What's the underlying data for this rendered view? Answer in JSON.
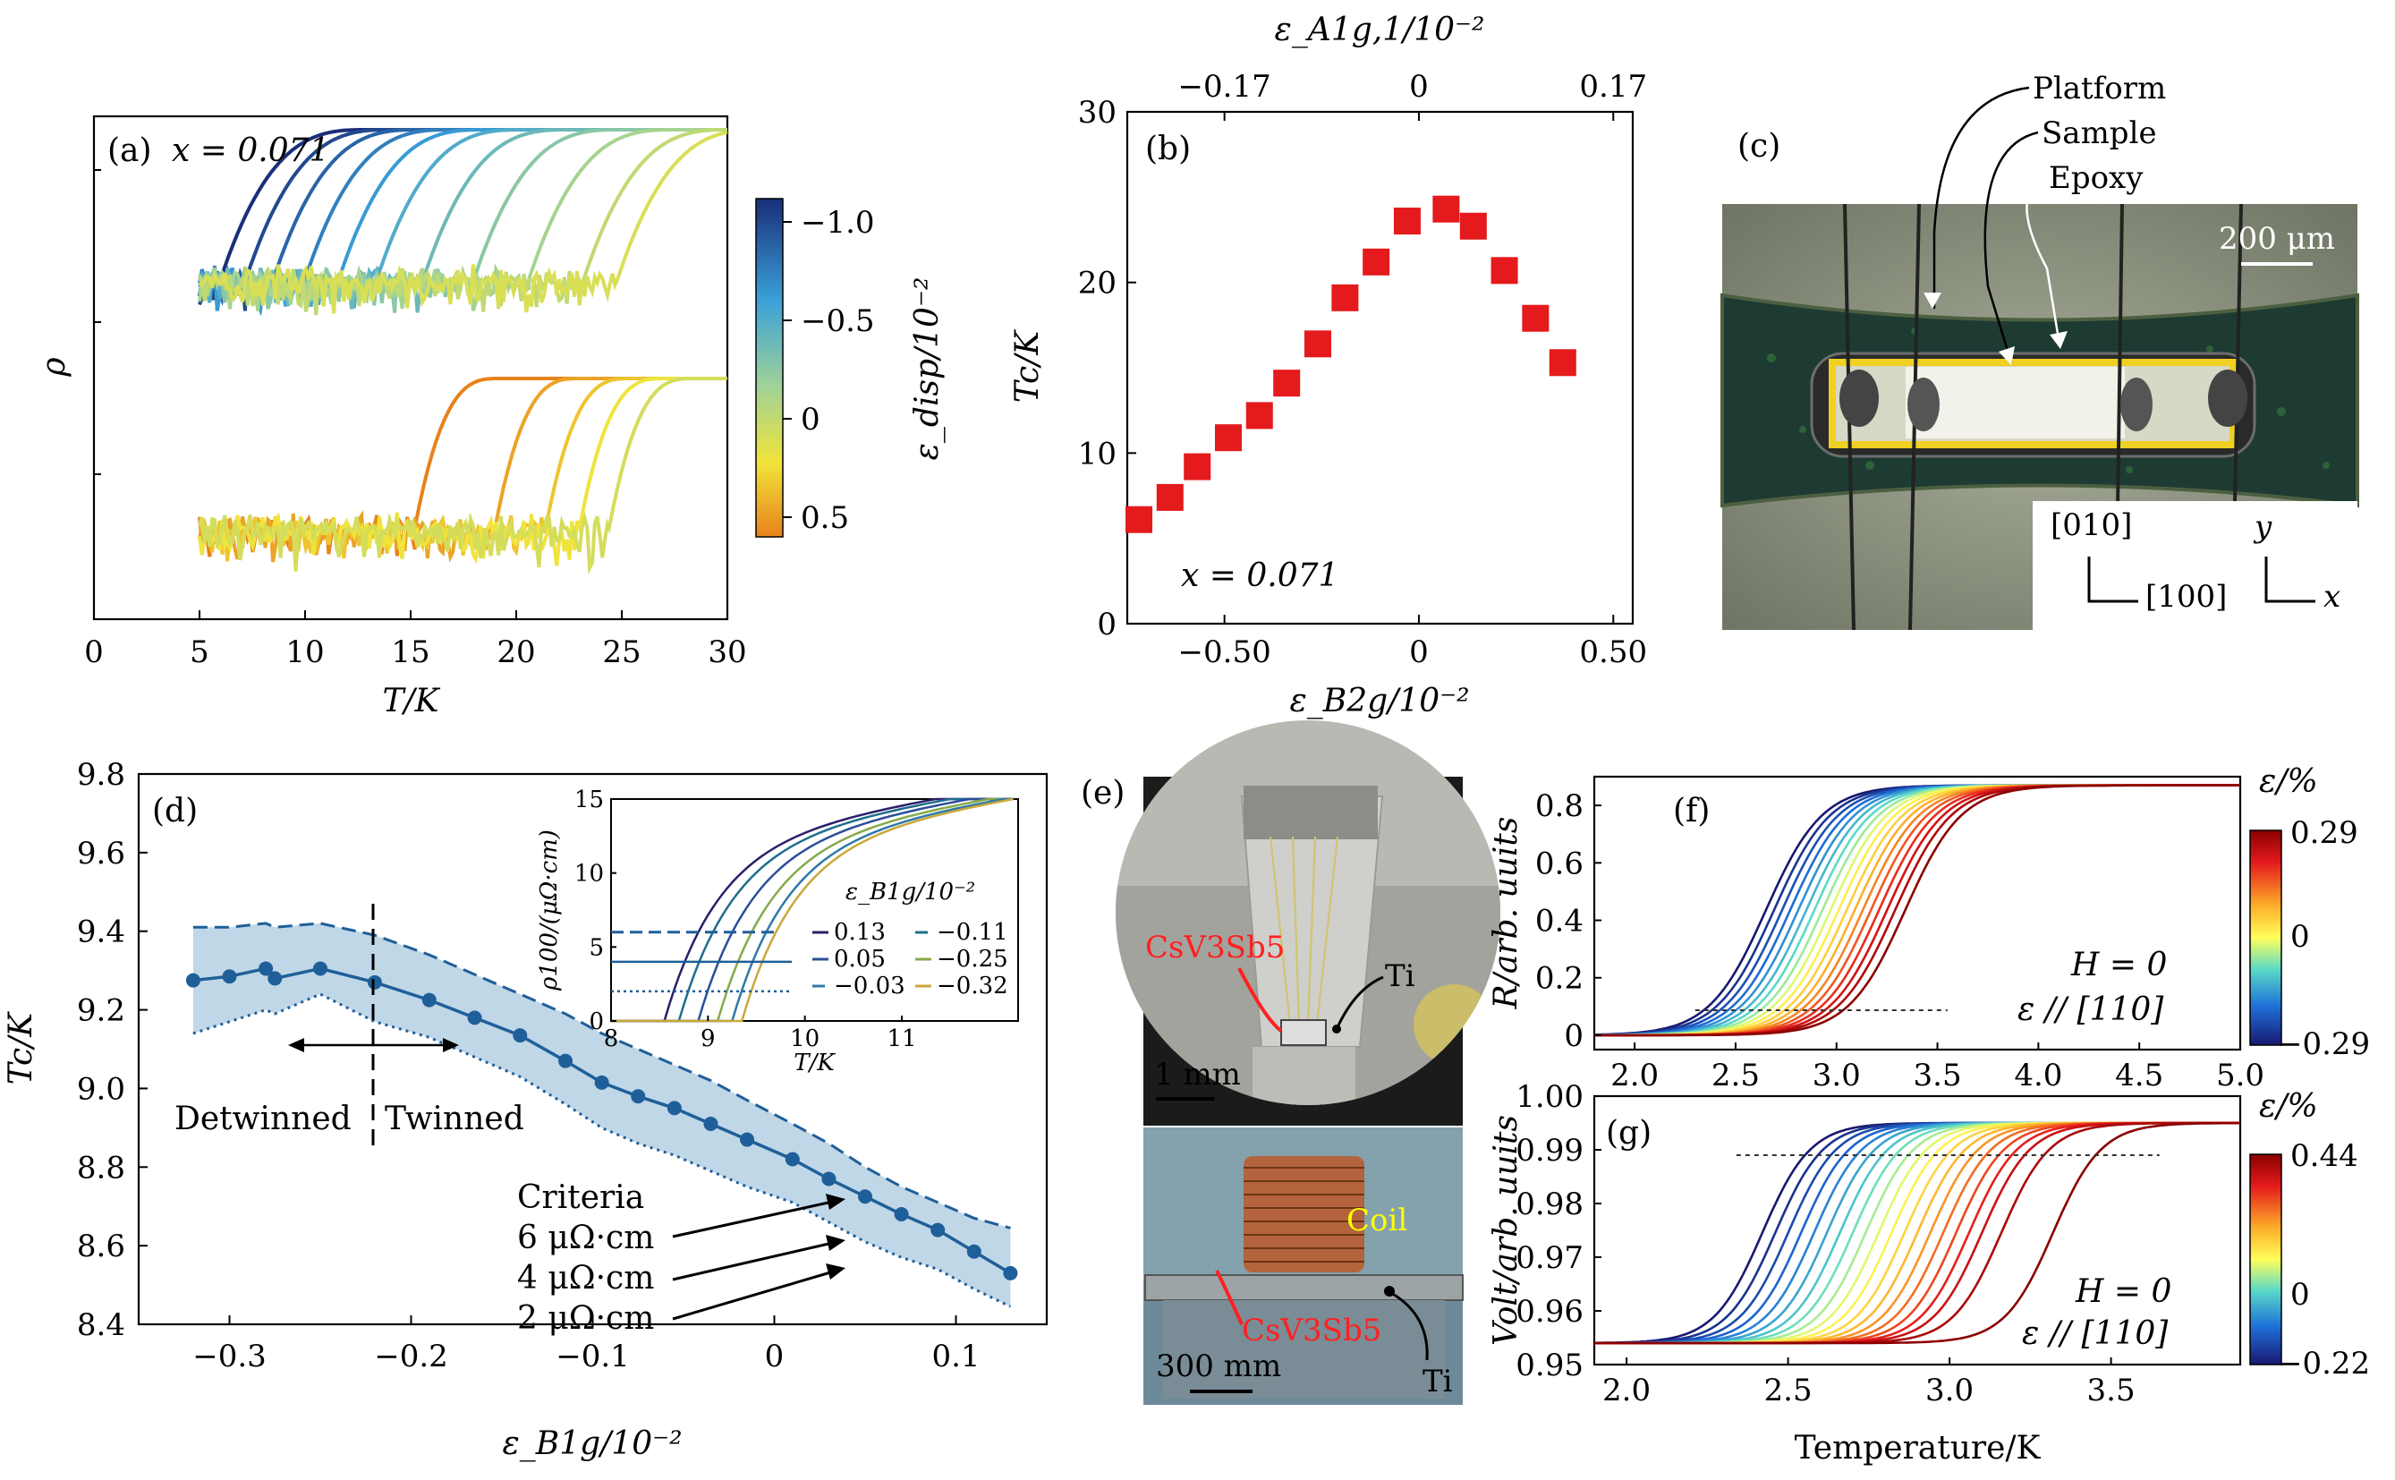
{
  "colors": {
    "cool_end": "#1a2e7a",
    "warm_end": "#e8821c",
    "marker_b": "#e41a1c",
    "line_d": "#1f5f99",
    "band_d": "#b9d3e6",
    "coil_red": "#e41a1c",
    "ti_label": "#ffff00"
  },
  "panels": {
    "a": {
      "label": "(a)",
      "annotation": "x = 0.071",
      "xlabel": "T/K",
      "ylabel": "ρ",
      "xticks": [
        "0",
        "5",
        "10",
        "15",
        "20",
        "25",
        "30"
      ],
      "colorbar_label": "ε_disp/10⁻²",
      "colorbar_ticks": [
        "−1.0",
        "−0.5",
        "0",
        "0.5"
      ]
    },
    "b": {
      "label": "(b)",
      "annotation": "x = 0.071",
      "xlabel": "ε_B2g/10⁻²",
      "top_label": "ε_A1g,1/10⁻²",
      "ylabel": "Tc/K",
      "xticks": [
        "−0.50",
        "0",
        "0.50"
      ],
      "top_ticks": [
        "−0.17",
        "0",
        "0.17"
      ],
      "yticks": [
        "0",
        "10",
        "20",
        "30"
      ]
    },
    "c": {
      "label": "(c)",
      "annotations": [
        "Platform",
        "Sample",
        "Epoxy"
      ],
      "scale": "200 μm",
      "axes_left": [
        "[010]",
        "[100]"
      ],
      "axes_right": [
        "y",
        "x"
      ]
    },
    "d": {
      "label": "(d)",
      "xlabel": "ε_B1g/10⁻²",
      "ylabel": "Tc/K",
      "xticks": [
        "−0.3",
        "−0.2",
        "−0.1",
        "0",
        "0.1"
      ],
      "yticks": [
        "8.4",
        "8.6",
        "8.8",
        "9.0",
        "9.2",
        "9.4",
        "9.6",
        "9.8"
      ],
      "detwinned": "Detwinned",
      "twinned": "Twinned",
      "criteria_title": "Criteria",
      "criteria": [
        "6 μΩ·cm",
        "4 μΩ·cm",
        "2 μΩ·cm"
      ],
      "inset": {
        "xlabel": "T/K",
        "ylabel": "ρ100/(μΩ·cm)",
        "xticks": [
          "8",
          "9",
          "10",
          "11"
        ],
        "yticks": [
          "0",
          "5",
          "10",
          "15"
        ],
        "legend_title": "ε_B1g/10⁻²",
        "legend": [
          "0.13",
          "−0.11",
          "0.05",
          "−0.25",
          "−0.03",
          "−0.32"
        ]
      }
    },
    "e": {
      "label": "(e)",
      "sample_label": "CsV3Sb5",
      "ti_label": "Ti",
      "scale_top": "1 mm",
      "coil_label": "Coil",
      "scale_bottom": "300 mm"
    },
    "f": {
      "label": "(f)",
      "ylabel": "R/arb. uuits",
      "xticks": [
        "2.0",
        "2.5",
        "3.0",
        "3.5",
        "4.0",
        "4.5",
        "5.0"
      ],
      "yticks": [
        "0",
        "0.2",
        "0.4",
        "0.6",
        "0.8"
      ],
      "field": "H = 0",
      "strain": "ε // [110]",
      "colorbar_label": "ε/%",
      "colorbar_ticks": [
        "0.29",
        "0",
        "−0.29"
      ]
    },
    "g": {
      "label": "(g)",
      "ylabel": "Volt/arb. uuits",
      "xlabel": "Temperature/K",
      "xticks": [
        "2.0",
        "2.5",
        "3.0",
        "3.5"
      ],
      "yticks": [
        "0.95",
        "0.96",
        "0.97",
        "0.98",
        "0.99",
        "1.00"
      ],
      "field": "H = 0",
      "strain": "ε // [110]",
      "colorbar_label": "ε/%",
      "colorbar_ticks": [
        "0.44",
        "0",
        "−0.22"
      ]
    }
  },
  "chart_data": [
    {
      "id": "a",
      "type": "line",
      "xlim": [
        0,
        30
      ],
      "upper_group_onsets_K": [
        6.0,
        7.2,
        8.5,
        10.0,
        11.6,
        13.4,
        15.6,
        18.0,
        20.6,
        23.2,
        24.8
      ],
      "lower_group_onsets_K": [
        15.2,
        19.0,
        21.4,
        23.0,
        24.4
      ],
      "noise_range_K": [
        5,
        24
      ]
    },
    {
      "id": "b",
      "type": "scatter",
      "x": [
        -0.72,
        -0.64,
        -0.57,
        -0.49,
        -0.41,
        -0.34,
        -0.26,
        -0.19,
        -0.11,
        -0.03,
        0.07,
        0.14,
        0.22,
        0.3,
        0.37
      ],
      "y": [
        6.1,
        7.4,
        9.2,
        10.9,
        12.2,
        14.1,
        16.4,
        19.1,
        21.2,
        23.6,
        24.3,
        23.3,
        20.7,
        17.9,
        15.3
      ],
      "xlim": [
        -0.75,
        0.55
      ],
      "ylim": [
        0,
        30
      ]
    },
    {
      "id": "d",
      "type": "line",
      "x": [
        -0.32,
        -0.3,
        -0.28,
        -0.275,
        -0.25,
        -0.22,
        -0.19,
        -0.165,
        -0.14,
        -0.115,
        -0.095,
        -0.075,
        -0.055,
        -0.035,
        -0.015,
        0.01,
        0.03,
        0.05,
        0.07,
        0.09,
        0.11,
        0.13
      ],
      "y": [
        9.275,
        9.285,
        9.305,
        9.28,
        9.305,
        9.27,
        9.225,
        9.18,
        9.135,
        9.07,
        9.015,
        8.98,
        8.95,
        8.91,
        8.87,
        8.82,
        8.77,
        8.725,
        8.68,
        8.64,
        8.585,
        8.53
      ],
      "upper": [
        9.41,
        9.41,
        9.42,
        9.41,
        9.42,
        9.39,
        9.34,
        9.29,
        9.24,
        9.19,
        9.14,
        9.1,
        9.06,
        9.02,
        8.97,
        8.91,
        8.86,
        8.8,
        8.75,
        8.71,
        8.67,
        8.645
      ],
      "lower": [
        9.14,
        9.17,
        9.2,
        9.19,
        9.24,
        9.17,
        9.13,
        9.08,
        9.03,
        8.96,
        8.9,
        8.86,
        8.83,
        8.79,
        8.75,
        8.71,
        8.66,
        8.61,
        8.57,
        8.54,
        8.49,
        8.445
      ],
      "xlim": [
        -0.35,
        0.15
      ],
      "ylim": [
        8.4,
        9.8
      ]
    },
    {
      "id": "f",
      "type": "line",
      "xlim": [
        1.8,
        5.0
      ],
      "ylim": [
        -0.05,
        0.9
      ],
      "midpoints_K": [
        2.65,
        2.69,
        2.73,
        2.77,
        2.81,
        2.85,
        2.89,
        2.93,
        2.97,
        3.01,
        3.05,
        3.09,
        3.13,
        3.17,
        3.21,
        3.25,
        3.29,
        3.34
      ],
      "plateau": 0.87
    },
    {
      "id": "g",
      "type": "line",
      "xlim": [
        1.9,
        3.9
      ],
      "ylim": [
        0.95,
        1.0
      ],
      "midpoints_K": [
        2.42,
        2.46,
        2.5,
        2.54,
        2.58,
        2.62,
        2.66,
        2.7,
        2.74,
        2.78,
        2.82,
        2.86,
        2.9,
        2.94,
        2.98,
        3.02,
        3.06,
        3.1,
        3.16,
        3.32
      ],
      "plateau": 0.995,
      "baseline": 0.954
    }
  ]
}
